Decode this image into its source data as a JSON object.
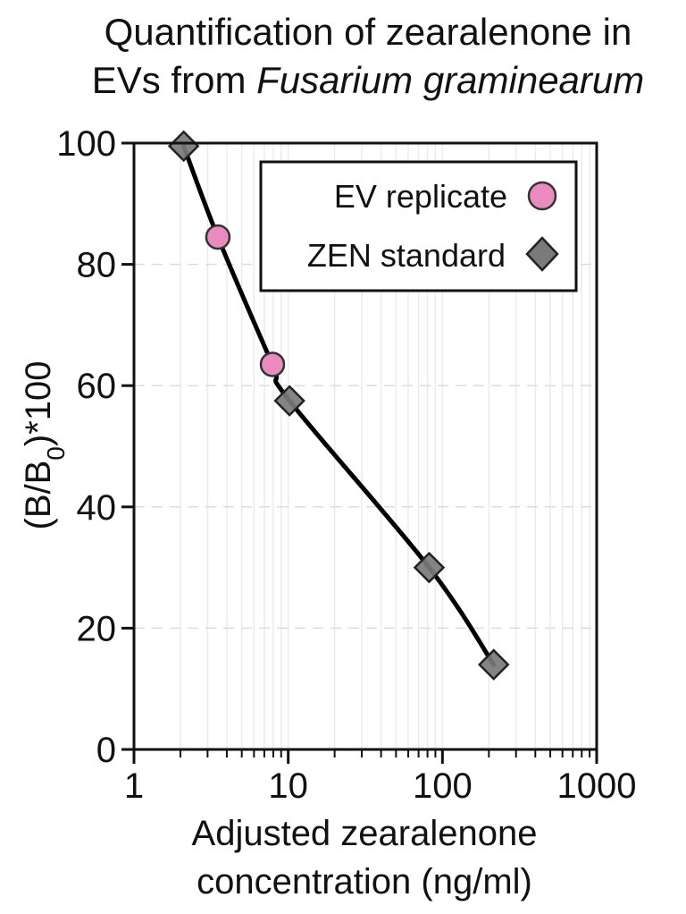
{
  "chart_data": {
    "type": "scatter",
    "title_line1": "Quantification of zearalenone in",
    "title_line2_prefix": "EVs from ",
    "title_line2_italic": "Fusarium graminearum",
    "xlabel_line1": "Adjusted zearalenone",
    "xlabel_line2": "concentration (ng/ml)",
    "ylabel": "(B/B0)*100",
    "ylabel_main": "(B/B",
    "ylabel_sub": "0",
    "ylabel_end": ")*100",
    "x_scale": "log",
    "xlim": [
      1,
      1000
    ],
    "ylim": [
      0,
      100
    ],
    "x_ticks": [
      1,
      10,
      100,
      1000
    ],
    "x_tick_labels": [
      "1",
      "10",
      "100",
      "1000"
    ],
    "y_ticks": [
      0,
      20,
      40,
      60,
      80,
      100
    ],
    "y_tick_labels": [
      "0",
      "20",
      "40",
      "60",
      "80",
      "100"
    ],
    "grid": true,
    "legend_position": "top-right",
    "series": [
      {
        "name": "EV replicate",
        "marker": "circle",
        "color": "#e98bbf",
        "points": [
          {
            "x": 3.5,
            "y": 84.5
          },
          {
            "x": 7.9,
            "y": 63.5
          }
        ]
      },
      {
        "name": "ZEN standard",
        "marker": "diamond",
        "color": "#7a7a7a",
        "points": [
          {
            "x": 2.1,
            "y": 99.5
          },
          {
            "x": 10.2,
            "y": 57.5
          },
          {
            "x": 82,
            "y": 30
          },
          {
            "x": 215,
            "y": 14
          }
        ]
      }
    ],
    "fit_curve": {
      "color": "#000000",
      "points": [
        {
          "x": 2.1,
          "y": 99.5
        },
        {
          "x": 3.5,
          "y": 84.5
        },
        {
          "x": 7.9,
          "y": 63.5
        },
        {
          "x": 10.2,
          "y": 57.5
        },
        {
          "x": 82,
          "y": 30
        },
        {
          "x": 215,
          "y": 14
        }
      ]
    }
  }
}
